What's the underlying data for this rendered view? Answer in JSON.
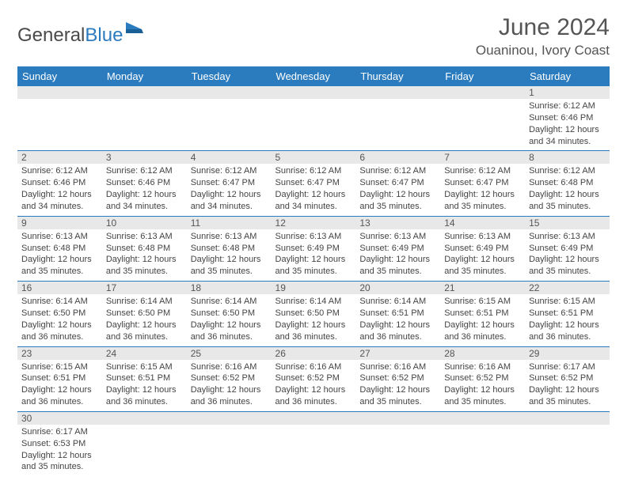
{
  "logo": {
    "text1": "General",
    "text2": "Blue"
  },
  "title": "June 2024",
  "location": "Ouaninou, Ivory Coast",
  "colors": {
    "header_bg": "#2b7bbf",
    "header_fg": "#ffffff",
    "daynum_bg": "#e8e8e8",
    "row_border": "#2b7bbf",
    "text": "#444444",
    "title": "#555555"
  },
  "day_headers": [
    "Sunday",
    "Monday",
    "Tuesday",
    "Wednesday",
    "Thursday",
    "Friday",
    "Saturday"
  ],
  "weeks": [
    [
      {
        "n": "",
        "lines": []
      },
      {
        "n": "",
        "lines": []
      },
      {
        "n": "",
        "lines": []
      },
      {
        "n": "",
        "lines": []
      },
      {
        "n": "",
        "lines": []
      },
      {
        "n": "",
        "lines": []
      },
      {
        "n": "1",
        "lines": [
          "Sunrise: 6:12 AM",
          "Sunset: 6:46 PM",
          "Daylight: 12 hours and 34 minutes."
        ]
      }
    ],
    [
      {
        "n": "2",
        "lines": [
          "Sunrise: 6:12 AM",
          "Sunset: 6:46 PM",
          "Daylight: 12 hours and 34 minutes."
        ]
      },
      {
        "n": "3",
        "lines": [
          "Sunrise: 6:12 AM",
          "Sunset: 6:46 PM",
          "Daylight: 12 hours and 34 minutes."
        ]
      },
      {
        "n": "4",
        "lines": [
          "Sunrise: 6:12 AM",
          "Sunset: 6:47 PM",
          "Daylight: 12 hours and 34 minutes."
        ]
      },
      {
        "n": "5",
        "lines": [
          "Sunrise: 6:12 AM",
          "Sunset: 6:47 PM",
          "Daylight: 12 hours and 34 minutes."
        ]
      },
      {
        "n": "6",
        "lines": [
          "Sunrise: 6:12 AM",
          "Sunset: 6:47 PM",
          "Daylight: 12 hours and 35 minutes."
        ]
      },
      {
        "n": "7",
        "lines": [
          "Sunrise: 6:12 AM",
          "Sunset: 6:47 PM",
          "Daylight: 12 hours and 35 minutes."
        ]
      },
      {
        "n": "8",
        "lines": [
          "Sunrise: 6:12 AM",
          "Sunset: 6:48 PM",
          "Daylight: 12 hours and 35 minutes."
        ]
      }
    ],
    [
      {
        "n": "9",
        "lines": [
          "Sunrise: 6:13 AM",
          "Sunset: 6:48 PM",
          "Daylight: 12 hours and 35 minutes."
        ]
      },
      {
        "n": "10",
        "lines": [
          "Sunrise: 6:13 AM",
          "Sunset: 6:48 PM",
          "Daylight: 12 hours and 35 minutes."
        ]
      },
      {
        "n": "11",
        "lines": [
          "Sunrise: 6:13 AM",
          "Sunset: 6:48 PM",
          "Daylight: 12 hours and 35 minutes."
        ]
      },
      {
        "n": "12",
        "lines": [
          "Sunrise: 6:13 AM",
          "Sunset: 6:49 PM",
          "Daylight: 12 hours and 35 minutes."
        ]
      },
      {
        "n": "13",
        "lines": [
          "Sunrise: 6:13 AM",
          "Sunset: 6:49 PM",
          "Daylight: 12 hours and 35 minutes."
        ]
      },
      {
        "n": "14",
        "lines": [
          "Sunrise: 6:13 AM",
          "Sunset: 6:49 PM",
          "Daylight: 12 hours and 35 minutes."
        ]
      },
      {
        "n": "15",
        "lines": [
          "Sunrise: 6:13 AM",
          "Sunset: 6:49 PM",
          "Daylight: 12 hours and 35 minutes."
        ]
      }
    ],
    [
      {
        "n": "16",
        "lines": [
          "Sunrise: 6:14 AM",
          "Sunset: 6:50 PM",
          "Daylight: 12 hours and 36 minutes."
        ]
      },
      {
        "n": "17",
        "lines": [
          "Sunrise: 6:14 AM",
          "Sunset: 6:50 PM",
          "Daylight: 12 hours and 36 minutes."
        ]
      },
      {
        "n": "18",
        "lines": [
          "Sunrise: 6:14 AM",
          "Sunset: 6:50 PM",
          "Daylight: 12 hours and 36 minutes."
        ]
      },
      {
        "n": "19",
        "lines": [
          "Sunrise: 6:14 AM",
          "Sunset: 6:50 PM",
          "Daylight: 12 hours and 36 minutes."
        ]
      },
      {
        "n": "20",
        "lines": [
          "Sunrise: 6:14 AM",
          "Sunset: 6:51 PM",
          "Daylight: 12 hours and 36 minutes."
        ]
      },
      {
        "n": "21",
        "lines": [
          "Sunrise: 6:15 AM",
          "Sunset: 6:51 PM",
          "Daylight: 12 hours and 36 minutes."
        ]
      },
      {
        "n": "22",
        "lines": [
          "Sunrise: 6:15 AM",
          "Sunset: 6:51 PM",
          "Daylight: 12 hours and 36 minutes."
        ]
      }
    ],
    [
      {
        "n": "23",
        "lines": [
          "Sunrise: 6:15 AM",
          "Sunset: 6:51 PM",
          "Daylight: 12 hours and 36 minutes."
        ]
      },
      {
        "n": "24",
        "lines": [
          "Sunrise: 6:15 AM",
          "Sunset: 6:51 PM",
          "Daylight: 12 hours and 36 minutes."
        ]
      },
      {
        "n": "25",
        "lines": [
          "Sunrise: 6:16 AM",
          "Sunset: 6:52 PM",
          "Daylight: 12 hours and 36 minutes."
        ]
      },
      {
        "n": "26",
        "lines": [
          "Sunrise: 6:16 AM",
          "Sunset: 6:52 PM",
          "Daylight: 12 hours and 36 minutes."
        ]
      },
      {
        "n": "27",
        "lines": [
          "Sunrise: 6:16 AM",
          "Sunset: 6:52 PM",
          "Daylight: 12 hours and 35 minutes."
        ]
      },
      {
        "n": "28",
        "lines": [
          "Sunrise: 6:16 AM",
          "Sunset: 6:52 PM",
          "Daylight: 12 hours and 35 minutes."
        ]
      },
      {
        "n": "29",
        "lines": [
          "Sunrise: 6:17 AM",
          "Sunset: 6:52 PM",
          "Daylight: 12 hours and 35 minutes."
        ]
      }
    ],
    [
      {
        "n": "30",
        "lines": [
          "Sunrise: 6:17 AM",
          "Sunset: 6:53 PM",
          "Daylight: 12 hours and 35 minutes."
        ]
      },
      {
        "n": "",
        "lines": []
      },
      {
        "n": "",
        "lines": []
      },
      {
        "n": "",
        "lines": []
      },
      {
        "n": "",
        "lines": []
      },
      {
        "n": "",
        "lines": []
      },
      {
        "n": "",
        "lines": []
      }
    ]
  ]
}
